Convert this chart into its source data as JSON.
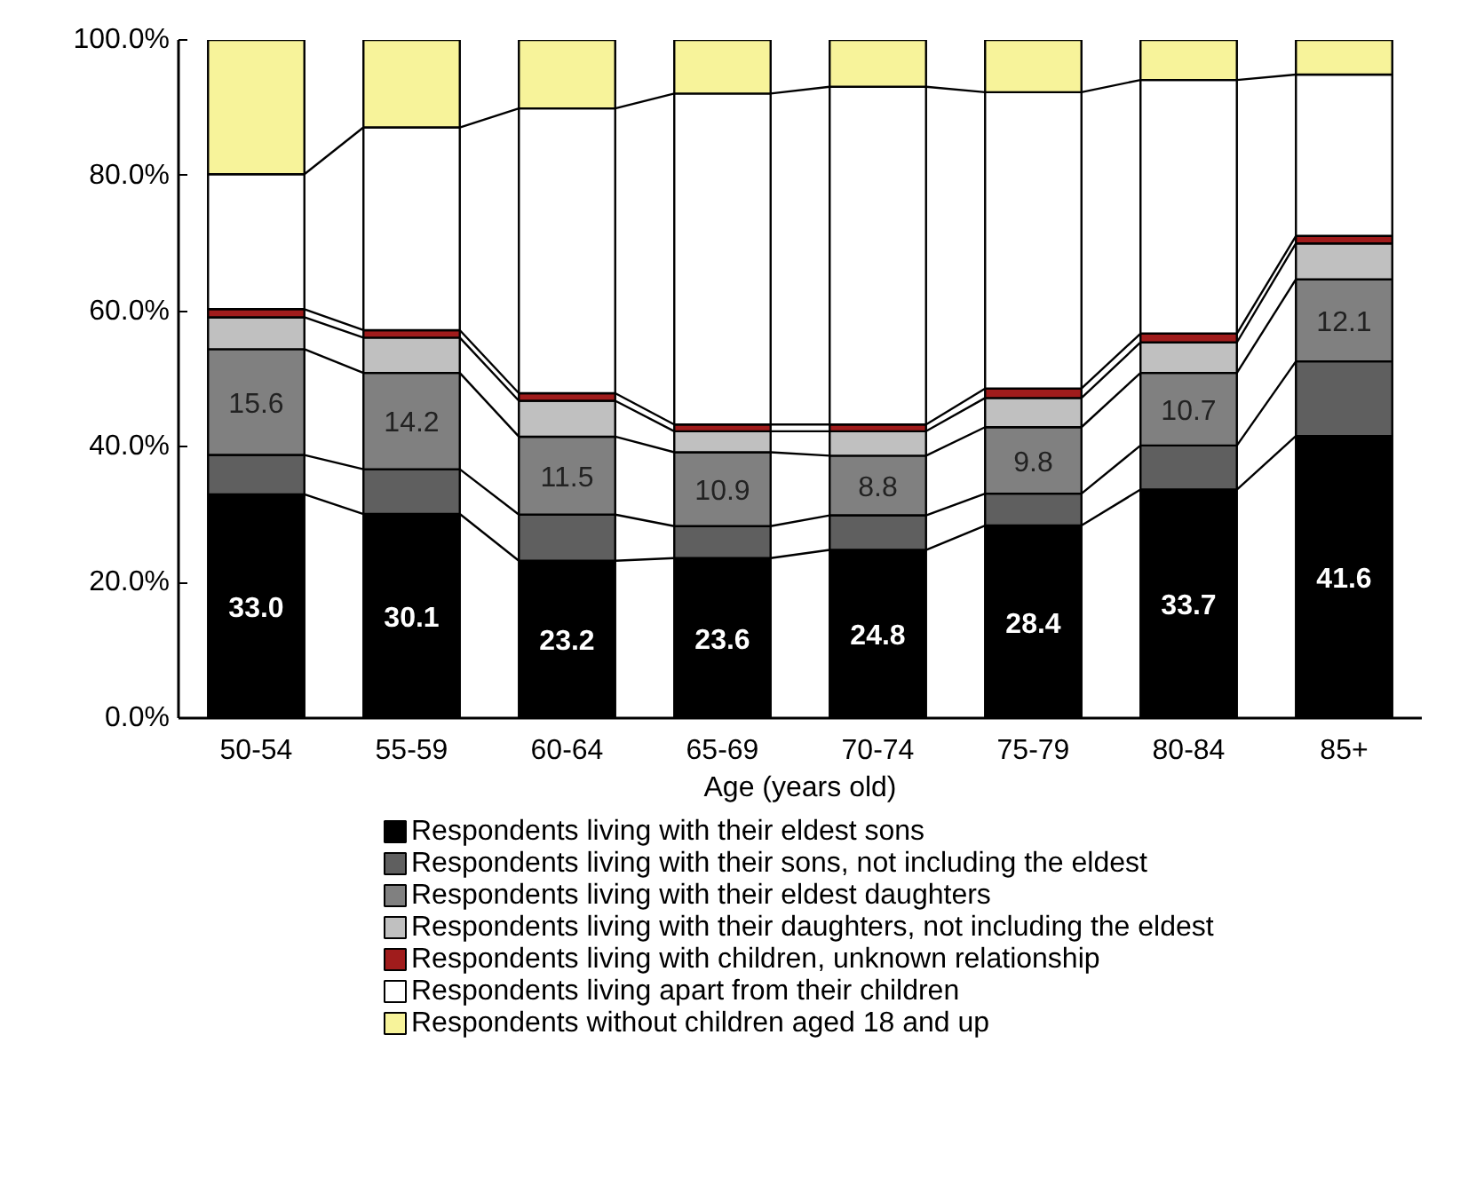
{
  "chart_data": {
    "type": "bar",
    "stacked": true,
    "xlabel": "Age (years old)",
    "categories": [
      "50-54",
      "55-59",
      "60-64",
      "65-69",
      "70-74",
      "75-79",
      "80-84",
      "85+"
    ],
    "series": [
      {
        "name": "Respondents living with their eldest sons",
        "color": "#000000",
        "values": [
          33.0,
          30.1,
          23.2,
          23.6,
          24.8,
          28.4,
          33.7,
          41.6
        ],
        "value_labels": [
          "33.0",
          "30.1",
          "23.2",
          "23.6",
          "24.8",
          "28.4",
          "33.7",
          "41.6"
        ]
      },
      {
        "name": "Respondents living with their sons, not including the eldest",
        "color": "#5f5f5f",
        "values": [
          5.8,
          6.6,
          6.8,
          4.7,
          5.1,
          4.7,
          6.5,
          11.0
        ]
      },
      {
        "name": "Respondents living with their eldest daughters",
        "color": "#808080",
        "values": [
          15.6,
          14.2,
          11.5,
          10.9,
          8.8,
          9.8,
          10.7,
          12.1
        ],
        "value_labels": [
          "15.6",
          "14.2",
          "11.5",
          "10.9",
          "8.8",
          "9.8",
          "10.7",
          "12.1"
        ]
      },
      {
        "name": "Respondents living with their daughters, not including the eldest",
        "color": "#c0c0c0",
        "values": [
          4.7,
          5.2,
          5.3,
          3.1,
          3.6,
          4.3,
          4.5,
          5.3
        ]
      },
      {
        "name": "Respondents living with children, unknown relationship",
        "color": "#a01c1c",
        "values": [
          1.2,
          1.1,
          1.1,
          1.0,
          1.0,
          1.4,
          1.3,
          1.1
        ]
      },
      {
        "name": "Respondents living apart from their children",
        "color": "#ffffff",
        "values": [
          19.9,
          29.9,
          42.0,
          48.8,
          49.8,
          43.7,
          37.4,
          23.8
        ]
      },
      {
        "name": "Respondents without children aged 18 and up",
        "color": "#f7f39a",
        "values": [
          19.8,
          12.9,
          10.1,
          7.9,
          6.9,
          7.7,
          5.9,
          5.1
        ]
      }
    ],
    "ylim": [
      0,
      100
    ],
    "yticks": [
      {
        "value": 0,
        "label": "0.0%"
      },
      {
        "value": 20,
        "label": "20.0%"
      },
      {
        "value": 40,
        "label": "40.0%"
      },
      {
        "value": 60,
        "label": "60.0%"
      },
      {
        "value": 80,
        "label": "80.0%"
      },
      {
        "value": 100,
        "label": "100.0%"
      }
    ],
    "grid": false,
    "legend": "bottom"
  }
}
